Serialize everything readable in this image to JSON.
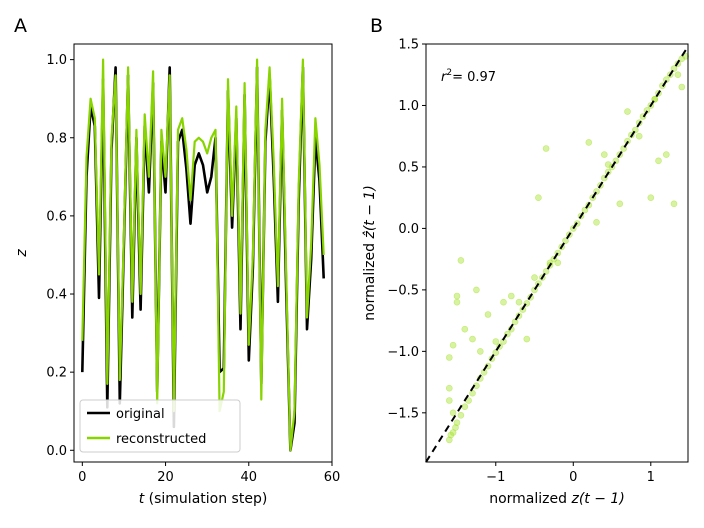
{
  "chart_data": [
    {
      "panel_label": "A",
      "type": "line",
      "xlabel_var": "t",
      "xlabel_rest": " (simulation step)",
      "ylabel": "z",
      "xlim": [
        -2,
        60
      ],
      "ylim": [
        -0.03,
        1.04
      ],
      "xticks": [
        0,
        20,
        40,
        60
      ],
      "yticks": [
        0.0,
        0.2,
        0.4,
        0.6,
        0.8,
        1.0
      ],
      "legend_position": "lower-left",
      "series": [
        {
          "name": "original",
          "color": "#000000",
          "x": [
            0,
            1,
            2,
            3,
            4,
            5,
            6,
            7,
            8,
            9,
            10,
            11,
            12,
            13,
            14,
            15,
            16,
            17,
            18,
            19,
            20,
            21,
            22,
            23,
            24,
            25,
            26,
            27,
            28,
            29,
            30,
            31,
            32,
            33,
            34,
            35,
            36,
            37,
            38,
            39,
            40,
            41,
            42,
            43,
            44,
            45,
            46,
            47,
            48,
            49,
            50,
            51,
            52,
            53,
            54,
            55,
            56,
            57,
            58
          ],
          "values": [
            0.2,
            0.7,
            0.88,
            0.83,
            0.39,
            0.95,
            0.11,
            0.77,
            0.98,
            0.12,
            0.53,
            0.96,
            0.34,
            0.8,
            0.36,
            0.83,
            0.66,
            0.94,
            0.15,
            0.79,
            0.66,
            0.98,
            0.06,
            0.79,
            0.82,
            0.72,
            0.58,
            0.73,
            0.76,
            0.73,
            0.66,
            0.7,
            0.8,
            0.2,
            0.21,
            0.92,
            0.57,
            0.85,
            0.31,
            0.91,
            0.23,
            0.47,
            0.98,
            0.17,
            0.79,
            0.96,
            0.7,
            0.38,
            0.87,
            0.41,
            0.0,
            0.07,
            0.64,
            0.98,
            0.31,
            0.49,
            0.8,
            0.69,
            0.44
          ]
        },
        {
          "name": "reconstructed",
          "color": "#88d400",
          "x": [
            0,
            1,
            2,
            3,
            4,
            5,
            6,
            7,
            8,
            9,
            10,
            11,
            12,
            13,
            14,
            15,
            16,
            17,
            18,
            19,
            20,
            21,
            22,
            23,
            24,
            25,
            26,
            27,
            28,
            29,
            30,
            31,
            32,
            33,
            34,
            35,
            36,
            37,
            38,
            39,
            40,
            41,
            42,
            43,
            44,
            45,
            46,
            47,
            48,
            49,
            50,
            51,
            52,
            53,
            54,
            55,
            56,
            57,
            58
          ],
          "values": [
            0.28,
            0.75,
            0.9,
            0.85,
            0.45,
            1.0,
            0.17,
            0.8,
            0.96,
            0.18,
            0.55,
            0.98,
            0.38,
            0.82,
            0.4,
            0.86,
            0.7,
            0.97,
            0.12,
            0.82,
            0.7,
            0.96,
            0.1,
            0.82,
            0.85,
            0.77,
            0.64,
            0.79,
            0.8,
            0.79,
            0.76,
            0.8,
            0.82,
            0.1,
            0.15,
            0.95,
            0.6,
            0.88,
            0.35,
            0.94,
            0.27,
            0.5,
            1.0,
            0.13,
            0.82,
            0.98,
            0.74,
            0.42,
            0.9,
            0.45,
            0.0,
            0.1,
            0.68,
            1.0,
            0.34,
            0.53,
            0.85,
            0.73,
            0.5
          ]
        }
      ]
    },
    {
      "panel_label": "B",
      "type": "scatter",
      "xlabel_prefix": "normalized ",
      "xlabel_var": "z",
      "xlabel_suffix": "(t − 1)",
      "ylabel_prefix": "normalized ",
      "ylabel_var": "ẑ",
      "ylabel_suffix": "(t − 1)",
      "annotation": "r",
      "annotation_value": "= 0.97",
      "xlim": [
        -1.9,
        1.48
      ],
      "ylim": [
        -1.9,
        1.5
      ],
      "xticks": [
        -1,
        0,
        1
      ],
      "yticks": [
        -1.5,
        -1.0,
        -0.5,
        0.0,
        0.5,
        1.0,
        1.5
      ],
      "diagonal_line": true,
      "point_color": "#a6e22e",
      "series": [
        {
          "x": [
            -1.6,
            -1.58,
            -1.55,
            -1.52,
            -1.5,
            -1.45,
            -1.4,
            -1.35,
            -1.3,
            -1.25,
            -1.2,
            -1.15,
            -1.1,
            -1.05,
            -1.0,
            -0.95,
            -0.9,
            -0.85,
            -0.8,
            -0.75,
            -0.7,
            -0.65,
            -0.6,
            -0.55,
            -0.5,
            -0.45,
            -0.4,
            -0.35,
            -0.3,
            -0.25,
            -0.2,
            -0.15,
            -0.1,
            -0.05,
            0.0,
            0.05,
            0.1,
            0.15,
            0.2,
            0.25,
            0.3,
            0.35,
            0.4,
            0.45,
            0.5,
            0.55,
            0.6,
            0.65,
            0.7,
            0.75,
            0.8,
            0.85,
            0.9,
            0.95,
            1.0,
            1.05,
            1.1,
            1.15,
            1.2,
            1.25,
            1.3,
            1.35,
            1.4,
            1.45,
            -1.6,
            -1.6,
            -1.55,
            -1.5,
            -1.45,
            -1.6,
            -1.4,
            -1.3,
            -1.25,
            -1.55,
            -1.5,
            -0.45,
            -0.3,
            -0.6,
            -0.7,
            0.2,
            0.3,
            0.4,
            0.6,
            0.7,
            -0.35,
            -0.5,
            1.0,
            1.2,
            1.3,
            1.1,
            -1.2,
            -1.0,
            -0.9,
            -0.8,
            -1.1,
            0.45,
            -0.2,
            0.85,
            1.05,
            1.35,
            1.4
          ],
          "y": [
            -1.72,
            -1.68,
            -1.66,
            -1.62,
            -1.58,
            -1.52,
            -1.45,
            -1.4,
            -1.34,
            -1.28,
            -1.22,
            -1.17,
            -1.12,
            -1.06,
            -1.01,
            -0.96,
            -0.92,
            -0.86,
            -0.82,
            -0.76,
            -0.71,
            -0.66,
            -0.61,
            -0.56,
            -0.5,
            -0.45,
            -0.4,
            -0.35,
            -0.3,
            -0.25,
            -0.2,
            -0.15,
            -0.1,
            -0.05,
            0.0,
            0.04,
            0.1,
            0.15,
            0.19,
            0.25,
            0.3,
            0.35,
            0.41,
            0.46,
            0.5,
            0.55,
            0.6,
            0.65,
            0.71,
            0.76,
            0.8,
            0.86,
            0.91,
            0.96,
            1.0,
            1.05,
            1.1,
            1.16,
            1.21,
            1.25,
            1.3,
            1.34,
            1.38,
            1.4,
            -1.4,
            -1.3,
            -0.95,
            -0.55,
            -0.26,
            -1.05,
            -0.82,
            -0.9,
            -0.5,
            -1.5,
            -0.6,
            0.25,
            -0.28,
            -0.9,
            -0.6,
            0.7,
            0.05,
            0.6,
            0.2,
            0.95,
            0.65,
            -0.4,
            0.25,
            0.6,
            0.2,
            0.55,
            -1.0,
            -0.92,
            -0.6,
            -0.55,
            -0.7,
            0.52,
            -0.28,
            0.75,
            1.05,
            1.25,
            1.15
          ]
        }
      ]
    }
  ]
}
